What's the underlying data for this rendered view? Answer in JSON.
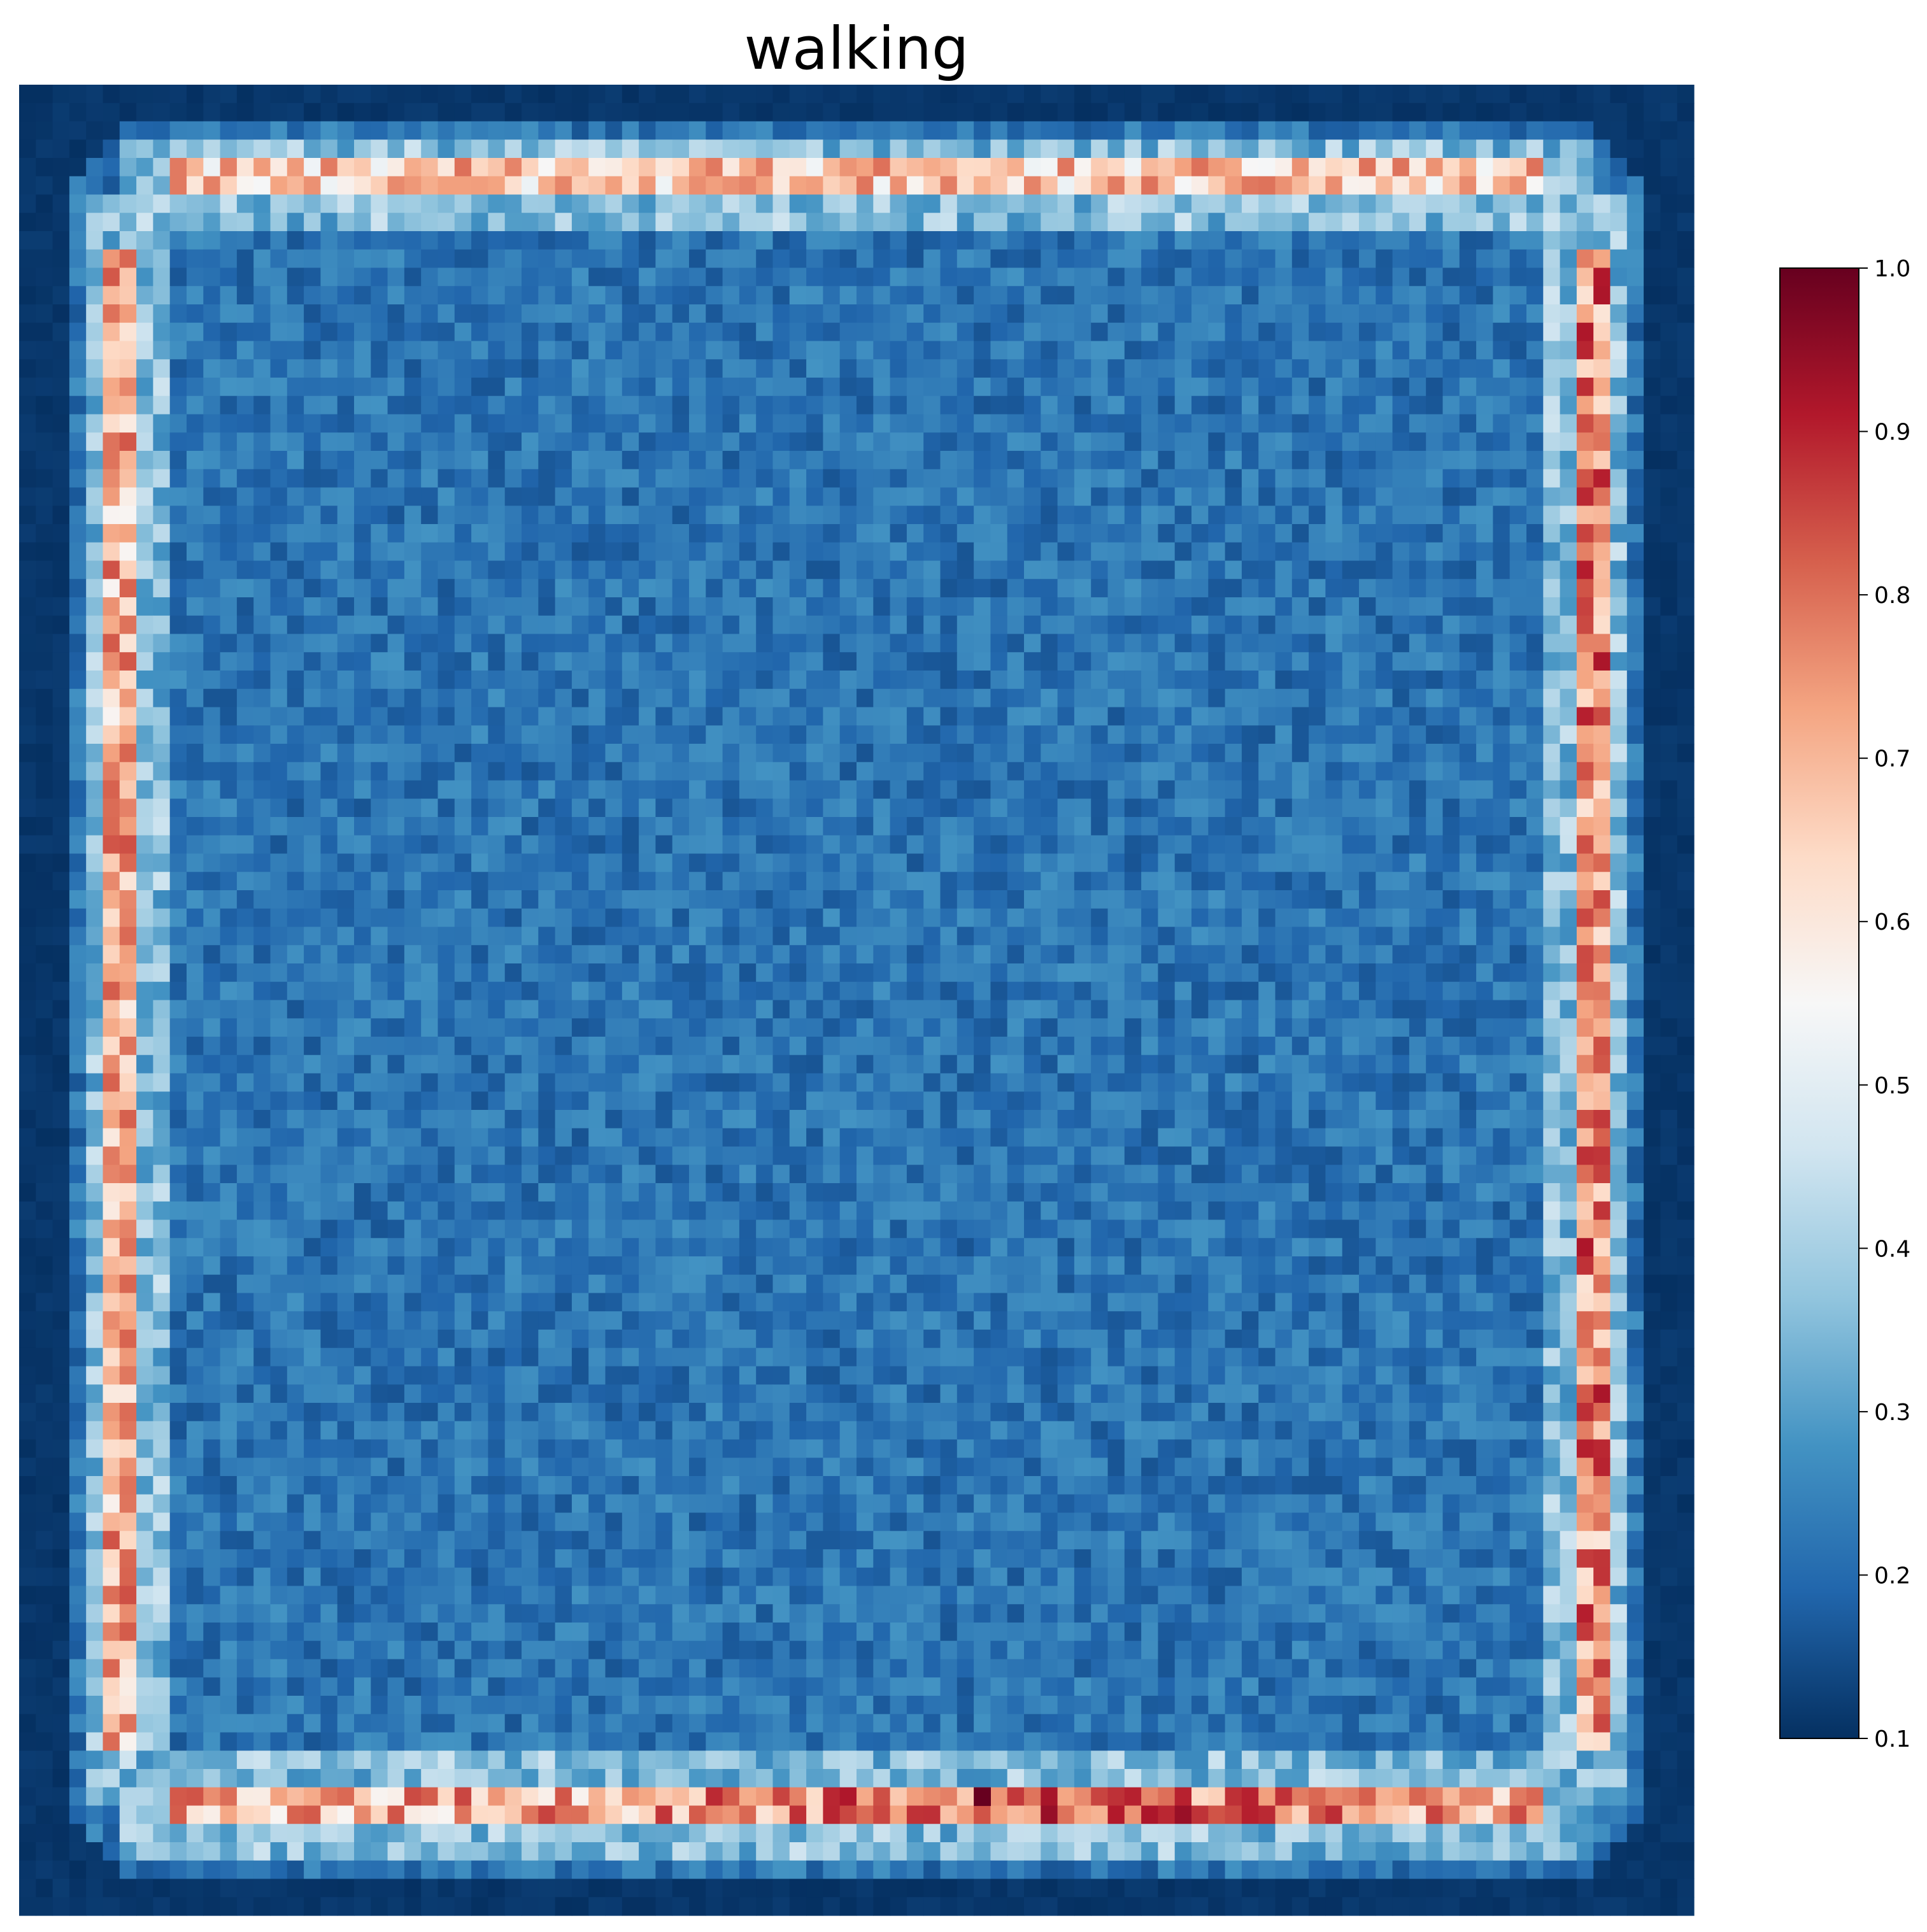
{
  "chart_data": {
    "type": "heatmap",
    "title": "walking",
    "xlabel": "",
    "ylabel": "",
    "grid": false,
    "axes_visible": false,
    "colormap": "RdBu_r",
    "colormap_stops": [
      "#053061",
      "#2166ac",
      "#4393c3",
      "#92c5de",
      "#d1e5f0",
      "#f7f7f7",
      "#fddbc7",
      "#f4a582",
      "#d6604d",
      "#b2182b",
      "#67001f"
    ],
    "value_range": [
      0.1,
      1.0
    ],
    "colorbar": {
      "placement": "right",
      "ticks": [
        0.1,
        0.2,
        0.3,
        0.4,
        0.5,
        0.6,
        0.7,
        0.8,
        0.9,
        1.0
      ],
      "tick_labels": [
        "0.1",
        "0.2",
        "0.3",
        "0.4",
        "0.5",
        "0.6",
        "0.7",
        "0.8",
        "0.9",
        "1.0"
      ]
    },
    "grid_size": [
      100,
      100
    ],
    "regions": {
      "outer_background": 0.1,
      "interior_mean": 0.22,
      "interior_variation": 0.06,
      "top_edge_band": 0.66,
      "bottom_edge_band": 0.7,
      "left_edge_band": 0.7,
      "right_edge_band": 0.76,
      "inner_border_ring": 0.36,
      "peak_value": 1.0
    }
  }
}
